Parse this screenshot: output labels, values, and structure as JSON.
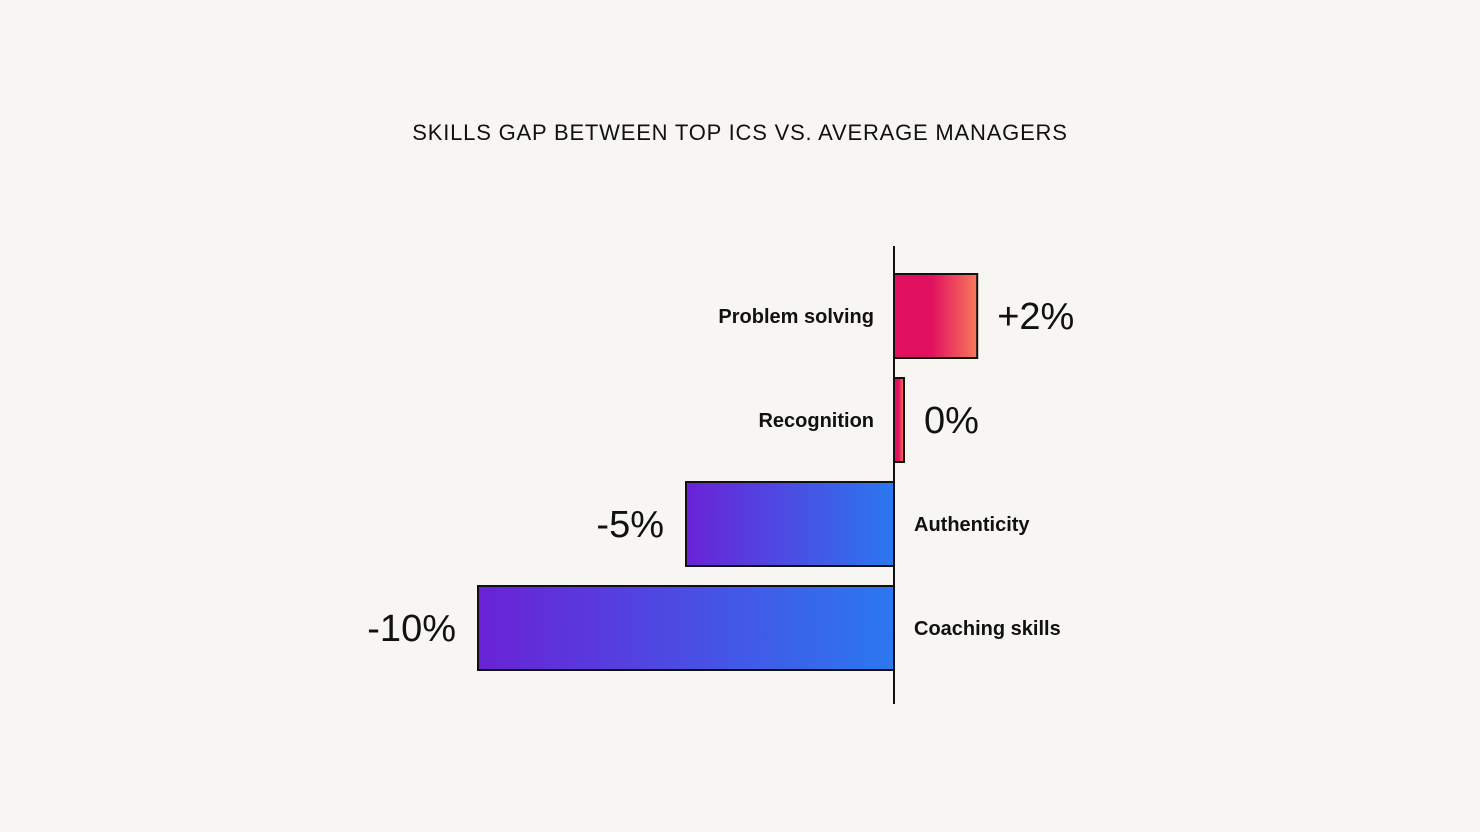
{
  "chart_data": {
    "type": "bar",
    "orientation": "horizontal",
    "title": "SKILLS GAP BETWEEN TOP ICS VS. AVERAGE MANAGERS",
    "categories": [
      "Problem solving",
      "Recognition",
      "Authenticity",
      "Coaching skills"
    ],
    "values": [
      2,
      0,
      -5,
      -10
    ],
    "value_labels": [
      "+2%",
      "0%",
      "-5%",
      "-10%"
    ],
    "xlim": [
      -10,
      2
    ],
    "grid": false,
    "legend": "none",
    "colors": {
      "positive_start": "#e0115f",
      "positive_end": "#f97a5a",
      "negative_start": "#6a22d6",
      "negative_end": "#2b78f0",
      "axis": "#111111",
      "background": "#f7f6f2"
    }
  }
}
